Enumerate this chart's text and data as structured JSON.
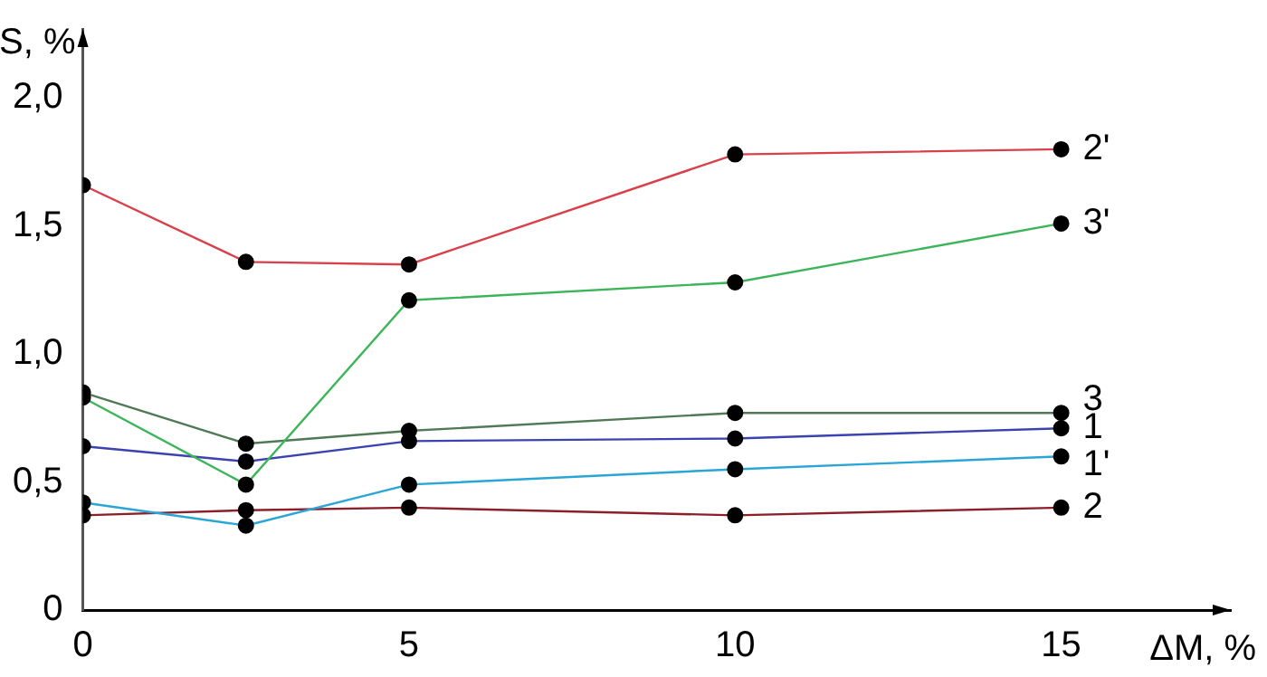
{
  "chart_data": {
    "type": "line",
    "xlabel": "ΔM, %",
    "ylabel": "S, %",
    "x": [
      0,
      2.5,
      5,
      10,
      15
    ],
    "series": [
      {
        "name": "2'",
        "color": "#d9414a",
        "values": [
          1.66,
          1.36,
          1.35,
          1.78,
          1.8
        ]
      },
      {
        "name": "3'",
        "color": "#3cb55a",
        "values": [
          0.83,
          0.49,
          1.21,
          1.28,
          1.51
        ]
      },
      {
        "name": "3",
        "color": "#4f7a55",
        "values": [
          0.85,
          0.65,
          0.7,
          0.77,
          0.77
        ]
      },
      {
        "name": "1",
        "color": "#3b43b0",
        "values": [
          0.64,
          0.58,
          0.66,
          0.67,
          0.71
        ]
      },
      {
        "name": "1'",
        "color": "#2aa6d6",
        "values": [
          0.42,
          0.33,
          0.49,
          0.55,
          0.6
        ]
      },
      {
        "name": "2",
        "color": "#8b1f2a",
        "values": [
          0.37,
          0.39,
          0.4,
          0.37,
          0.4
        ]
      }
    ],
    "xlim": [
      0,
      17.6
    ],
    "ylim": [
      0,
      2.27
    ],
    "xticks": [
      0,
      5,
      10,
      15
    ],
    "yticks": [
      0,
      {
        "value": 0.5,
        "label": "0,5"
      },
      {
        "value": 1,
        "label": "1,0"
      },
      {
        "value": 1.5,
        "label": "1,5"
      },
      {
        "value": 2,
        "label": "2,0"
      }
    ],
    "grid": false,
    "legend": false,
    "marker": "circle",
    "line_style": "solid"
  }
}
